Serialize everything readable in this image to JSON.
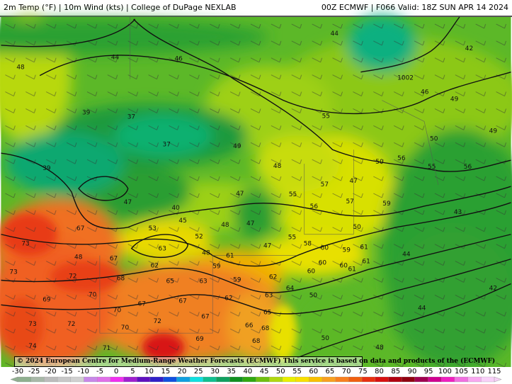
{
  "header": {
    "title_left": "2m Temp (°F) | 10m Wind (kts) | College of DuPage NEXLAB",
    "title_right": "00Z ECMWF | F066 Valid: 18Z SUN APR 14 2024"
  },
  "credit": "© 2024 European Centre for Medium-Range Weather Forecasts (ECMWF)  This service is based on data and products of the (ECMWF)",
  "pressure_label": "1002",
  "temperature_labels": [
    "44",
    "42",
    "44",
    "46",
    "48",
    "46",
    "49",
    "49",
    "39",
    "37",
    "55",
    "50",
    "37",
    "49",
    "56",
    "50",
    "55",
    "56",
    "39",
    "48",
    "57",
    "47",
    "47",
    "55",
    "57",
    "59",
    "47",
    "40",
    "56",
    "43",
    "67",
    "53",
    "45",
    "48",
    "47",
    "50",
    "52",
    "55",
    "47",
    "58",
    "73",
    "63",
    "60",
    "59",
    "61",
    "44",
    "48",
    "67",
    "48",
    "61",
    "62",
    "59",
    "60",
    "60",
    "61",
    "73",
    "72",
    "68",
    "65",
    "63",
    "59",
    "62",
    "60",
    "61",
    "64",
    "42",
    "70",
    "69",
    "67",
    "67",
    "62",
    "63",
    "50",
    "70",
    "65",
    "44",
    "73",
    "72",
    "72",
    "67",
    "66",
    "70",
    "68",
    "69",
    "50",
    "71",
    "74",
    "68",
    "48"
  ],
  "colorbar": {
    "ticks": [
      "-30",
      "-25",
      "-20",
      "-15",
      "-10",
      "-5",
      "0",
      "5",
      "10",
      "15",
      "20",
      "25",
      "30",
      "35",
      "40",
      "45",
      "50",
      "55",
      "60",
      "65",
      "70",
      "75",
      "80",
      "85",
      "90",
      "95",
      "100",
      "105",
      "110",
      "115"
    ],
    "range_f": [
      -30,
      115
    ],
    "colors": [
      "#8fb08f",
      "#a8b8a8",
      "#bcbcbc",
      "#c8c8c8",
      "#d0d0d0",
      "#c888e8",
      "#e070e8",
      "#f030f0",
      "#a020d0",
      "#6010c0",
      "#3020c8",
      "#1050e0",
      "#10a0e0",
      "#10e0e0",
      "#10c090",
      "#10a060",
      "#109020",
      "#30a810",
      "#70c010",
      "#b0d810",
      "#e8f000",
      "#f8e000",
      "#f8c000",
      "#f8a020",
      "#f88020",
      "#f06010",
      "#e83010",
      "#d81010",
      "#b00010",
      "#900010",
      "#a00050",
      "#d00090",
      "#f020c0",
      "#f070e0",
      "#f8a8f0",
      "#f8d0f8"
    ]
  },
  "colors": {
    "map_cold": "#10a070",
    "map_cool": "#2a9e30",
    "map_mild": "#9ad01a",
    "map_warm": "#e8e000",
    "map_hot": "#f07020",
    "map_very_hot": "#e02818"
  }
}
